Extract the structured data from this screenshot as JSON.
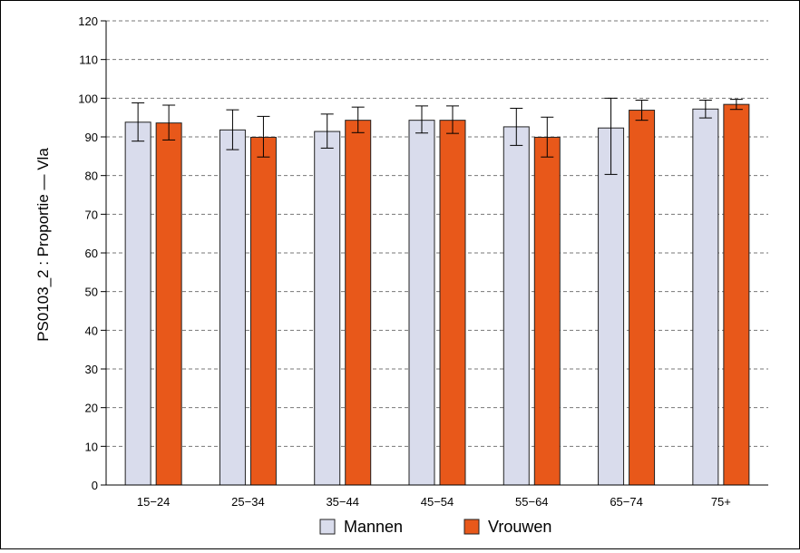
{
  "chart_data": {
    "type": "bar",
    "title": "",
    "ylabel": "PS0103_2 : Proportie — Vla",
    "xlabel": "",
    "ylim": [
      0,
      120
    ],
    "yticks": [
      0,
      10,
      20,
      30,
      40,
      50,
      60,
      70,
      80,
      90,
      100,
      110,
      120
    ],
    "grid": true,
    "legend_position": "bottom",
    "categories": [
      "15−24",
      "25−34",
      "35−44",
      "45−54",
      "55−64",
      "65−74",
      "75+"
    ],
    "series": [
      {
        "name": "Mannen",
        "color": "#d9dcec",
        "values": [
          93.8,
          91.8,
          91.4,
          94.3,
          92.6,
          92.3,
          97.2
        ],
        "error_low": [
          88.9,
          86.7,
          87.1,
          91.0,
          87.8,
          80.3,
          94.9
        ],
        "error_high": [
          98.8,
          97.0,
          95.9,
          98.0,
          97.4,
          100.0,
          99.5
        ]
      },
      {
        "name": "Vrouwen",
        "color": "#e8581a",
        "values": [
          93.6,
          89.9,
          94.3,
          94.3,
          89.9,
          96.9,
          98.4
        ],
        "error_low": [
          89.2,
          84.8,
          91.1,
          90.9,
          84.8,
          94.3,
          97.1
        ],
        "error_high": [
          98.2,
          95.3,
          97.7,
          98.0,
          95.1,
          99.5,
          99.7
        ]
      }
    ]
  }
}
